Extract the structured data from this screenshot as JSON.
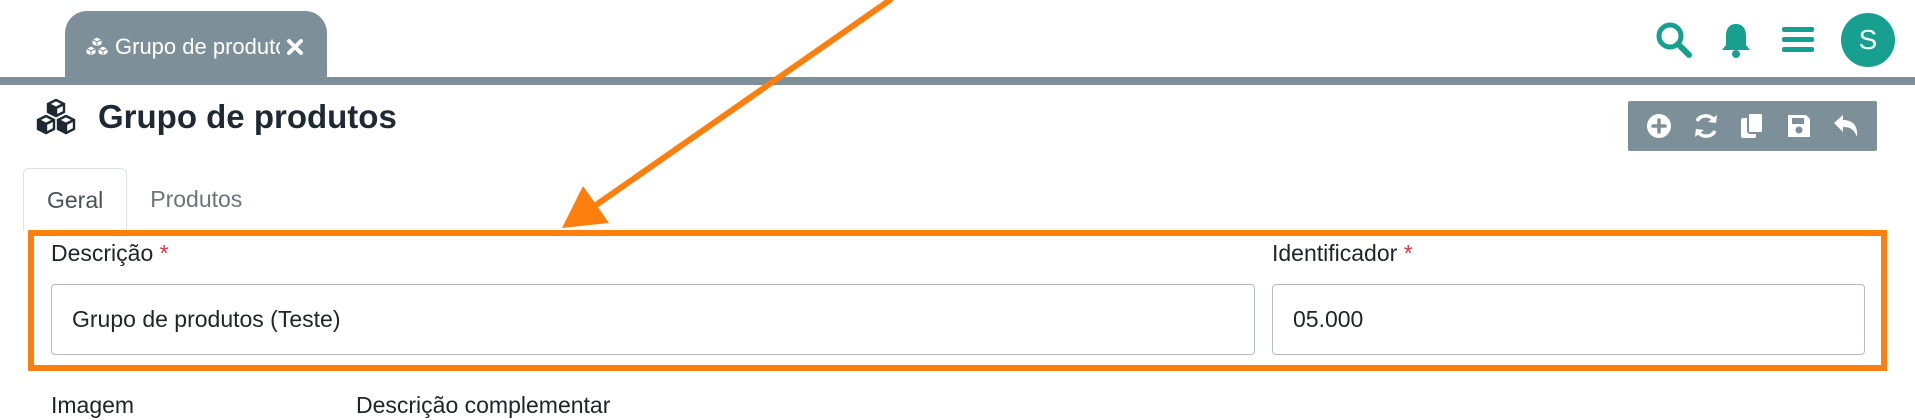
{
  "header": {
    "tab_label": "Grupo de produtos",
    "tab_icon": "cubes-icon",
    "avatar_initial": "S",
    "icons": [
      "search-icon",
      "bell-icon",
      "menu-icon"
    ],
    "accent_color": "#17a08f",
    "bar_color": "#7d8f99"
  },
  "page": {
    "title": "Grupo de produtos",
    "title_icon": "cubes-icon"
  },
  "toolbar": {
    "actions": [
      "add-icon",
      "refresh-icon",
      "copy-icon",
      "save-icon",
      "undo-icon"
    ]
  },
  "tabs": [
    {
      "label": "Geral",
      "active": true
    },
    {
      "label": "Produtos",
      "active": false
    }
  ],
  "form": {
    "descricao_label": "Descrição",
    "descricao_value": "Grupo de produtos (Teste)",
    "identificador_label": "Identificador",
    "identificador_value": "05.000",
    "required_mark": "*",
    "imagem_label": "Imagem",
    "descricao_complementar_label": "Descrição complementar"
  },
  "annotation": {
    "color": "#ff7f0e"
  }
}
